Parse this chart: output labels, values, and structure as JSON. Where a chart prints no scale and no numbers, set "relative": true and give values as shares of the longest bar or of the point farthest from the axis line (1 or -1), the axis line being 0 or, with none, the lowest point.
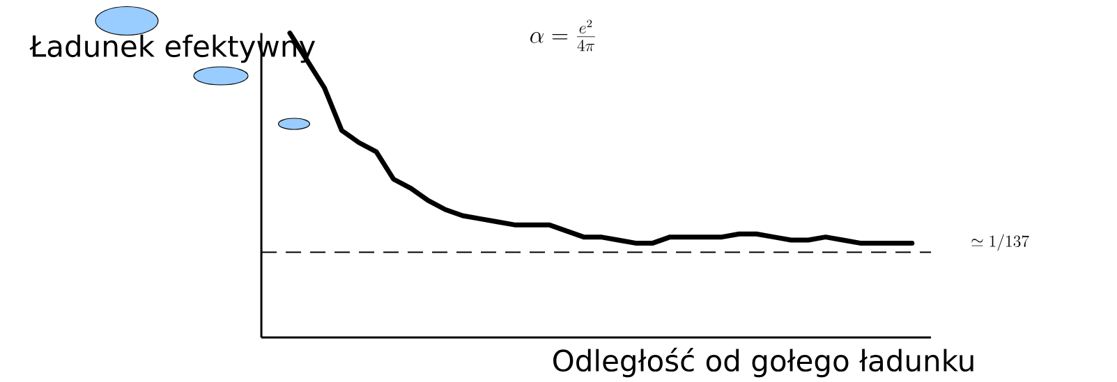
{
  "chart_data": {
    "type": "line",
    "relative": true,
    "annotations": [
      "Ładunek efektywny",
      "\\alpha = \\frac{e^2}{4\\pi}",
      "Odległość od gołego ładunku"
    ],
    "categories": [
      null,
      null,
      null,
      null,
      null,
      null,
      null,
      null,
      null,
      null,
      null,
      null,
      null,
      null,
      null,
      null,
      null,
      null,
      null,
      null,
      null,
      null,
      null,
      null,
      null,
      null,
      null,
      null,
      null,
      null,
      null,
      null,
      null,
      null,
      null,
      null,
      null
    ],
    "series": [
      {
        "color": "#000000",
        "values": [
          1.0,
          0.91,
          0.82,
          0.68,
          0.64,
          0.61,
          0.52,
          0.49,
          0.45,
          0.42,
          0.4,
          0.39,
          0.38,
          0.37,
          0.37,
          0.37,
          0.35,
          0.33,
          0.33,
          0.32,
          0.31,
          0.31,
          0.33,
          0.33,
          0.33,
          0.33,
          0.34,
          0.34,
          0.33,
          0.32,
          0.32,
          0.33,
          0.32,
          0.31,
          0.31,
          0.31,
          0.31
        ]
      }
    ],
    "ref_lines": [
      {
        "axis": "y",
        "value": 0.28,
        "label": "\\simeq 1/137",
        "line_style": "dashed",
        "color": "#000000"
      }
    ],
    "marker": "none",
    "line_style": "solid"
  }
}
